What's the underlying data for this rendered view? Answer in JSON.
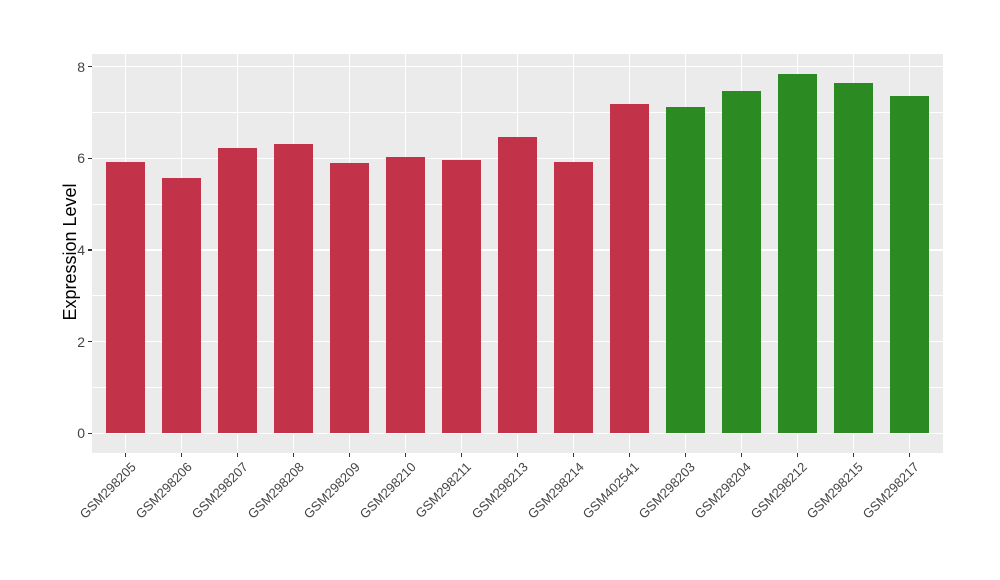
{
  "chart_data": {
    "type": "bar",
    "title": "",
    "xlabel": "",
    "ylabel": "Expression Level",
    "ylim": [
      0,
      8.28
    ],
    "yticks": [
      0,
      2,
      4,
      6,
      8
    ],
    "yminor": [
      1,
      3,
      5,
      7
    ],
    "legend": "none",
    "grid": "white major/minor horizontal lines and white vertical lines at category centers on grey panel",
    "group_colors": {
      "red": "#C23349",
      "green": "#2B8B22"
    },
    "bars": [
      {
        "label": "GSM298205",
        "value": 5.91,
        "group": "red"
      },
      {
        "label": "GSM298206",
        "value": 5.58,
        "group": "red"
      },
      {
        "label": "GSM298207",
        "value": 6.22,
        "group": "red"
      },
      {
        "label": "GSM298208",
        "value": 6.32,
        "group": "red"
      },
      {
        "label": "GSM298209",
        "value": 5.9,
        "group": "red"
      },
      {
        "label": "GSM298210",
        "value": 6.02,
        "group": "red"
      },
      {
        "label": "GSM298211",
        "value": 5.97,
        "group": "red"
      },
      {
        "label": "GSM298213",
        "value": 6.47,
        "group": "red"
      },
      {
        "label": "GSM298214",
        "value": 5.93,
        "group": "red"
      },
      {
        "label": "GSM402541",
        "value": 7.19,
        "group": "red"
      },
      {
        "label": "GSM298203",
        "value": 7.12,
        "group": "green"
      },
      {
        "label": "GSM298204",
        "value": 7.47,
        "group": "green"
      },
      {
        "label": "GSM298212",
        "value": 7.84,
        "group": "green"
      },
      {
        "label": "GSM298215",
        "value": 7.64,
        "group": "green"
      },
      {
        "label": "GSM298217",
        "value": 7.37,
        "group": "green"
      }
    ],
    "panel": {
      "bg": "#EBEBEB",
      "grid_color": "#FFFFFF"
    },
    "axis_text_color": "#444444",
    "tick_mark_color": "#333333"
  }
}
